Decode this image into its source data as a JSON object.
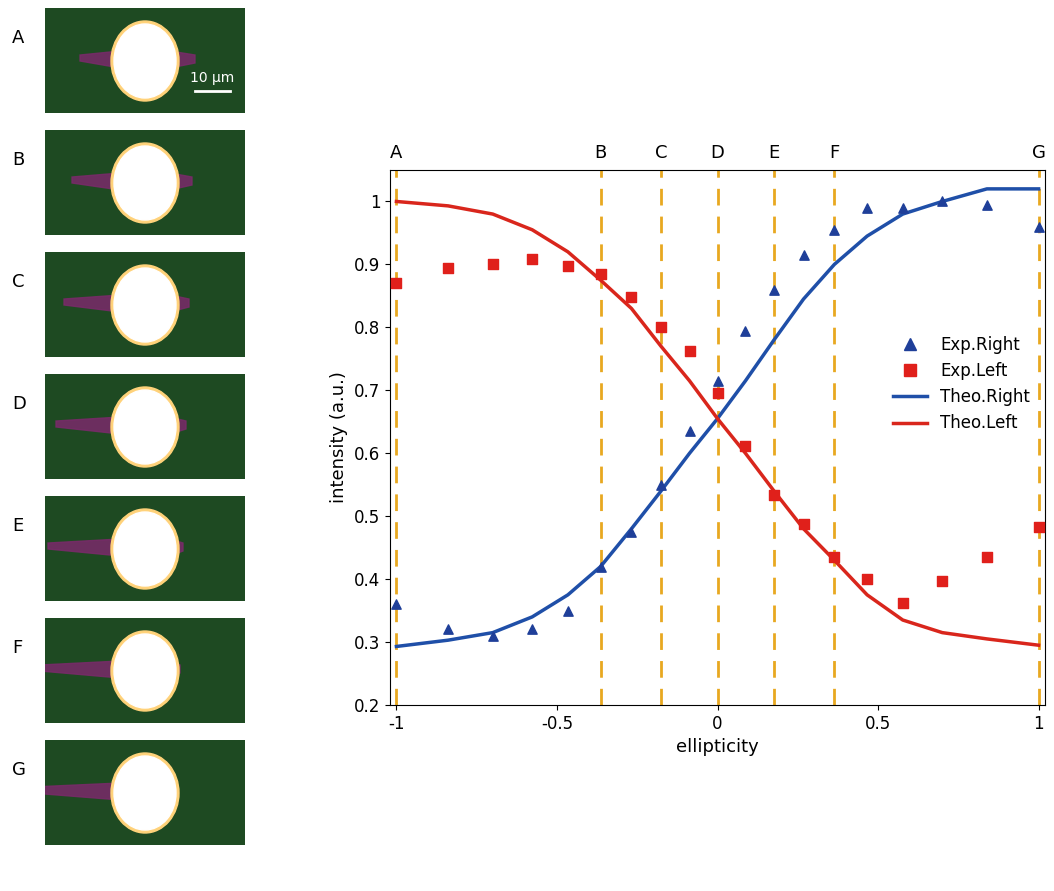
{
  "chart_data": {
    "type": "line",
    "xlabel": "ellipticity",
    "ylabel": "intensity (a.u.)",
    "xlim": [
      -1.02,
      1.02
    ],
    "ylim": [
      0.2,
      1.05
    ],
    "xticks": [
      {
        "value": -1,
        "label": "-1"
      },
      -0.5,
      0,
      0.5,
      1
    ],
    "yticks": [
      0.2,
      0.3,
      0.4,
      0.5,
      0.6,
      0.7,
      0.8,
      0.9,
      1
    ],
    "legend": "center right",
    "reference_lines": [
      {
        "x": -1,
        "label": "A"
      },
      {
        "x": -0.364,
        "label": "B"
      },
      {
        "x": -0.176,
        "label": "C"
      },
      {
        "x": 0,
        "label": "D"
      },
      {
        "x": 0.176,
        "label": "E"
      },
      {
        "x": 0.364,
        "label": "F"
      },
      {
        "x": 1,
        "label": "G"
      }
    ],
    "reference_color": "#e8a820",
    "series": [
      {
        "name": "Exp.Right",
        "type": "scatter",
        "marker": "triangle",
        "color": "#1f3f99",
        "x": [
          -1,
          -0.839,
          -0.7,
          -0.577,
          -0.466,
          -0.364,
          -0.268,
          -0.176,
          -0.087,
          0,
          0.087,
          0.176,
          0.268,
          0.364,
          0.466,
          0.577,
          0.7,
          0.839,
          1
        ],
        "values": [
          0.36,
          0.32,
          0.31,
          0.32,
          0.35,
          0.42,
          0.475,
          0.55,
          0.635,
          0.715,
          0.795,
          0.86,
          0.915,
          0.955,
          0.99,
          0.99,
          1.0,
          0.995,
          0.96
        ]
      },
      {
        "name": "Exp.Left",
        "type": "scatter",
        "marker": "square",
        "color": "#e0201b",
        "x": [
          -1,
          -0.839,
          -0.7,
          -0.577,
          -0.466,
          -0.364,
          -0.268,
          -0.176,
          -0.087,
          0,
          0.087,
          0.176,
          0.268,
          0.364,
          0.466,
          0.577,
          0.7,
          0.839,
          1
        ],
        "values": [
          0.87,
          0.895,
          0.9,
          0.908,
          0.898,
          0.885,
          0.848,
          0.8,
          0.762,
          0.695,
          0.612,
          0.533,
          0.487,
          0.435,
          0.4,
          0.362,
          0.397,
          0.435,
          0.483
        ]
      },
      {
        "name": "Theo.Right",
        "type": "line",
        "line_style": "solid",
        "color": "#1f4fa8",
        "x": [
          -1,
          -0.839,
          -0.7,
          -0.577,
          -0.466,
          -0.364,
          -0.268,
          -0.176,
          -0.087,
          0,
          0.087,
          0.176,
          0.268,
          0.364,
          0.466,
          0.577,
          0.7,
          0.839,
          1
        ],
        "values": [
          0.293,
          0.303,
          0.315,
          0.34,
          0.375,
          0.42,
          0.48,
          0.54,
          0.6,
          0.655,
          0.715,
          0.78,
          0.845,
          0.9,
          0.945,
          0.98,
          1.0,
          1.02,
          1.02
        ]
      },
      {
        "name": "Theo.Left",
        "type": "line",
        "line_style": "solid",
        "color": "#d9261c",
        "x": [
          -1,
          -0.839,
          -0.7,
          -0.577,
          -0.466,
          -0.364,
          -0.268,
          -0.176,
          -0.087,
          0,
          0.087,
          0.176,
          0.268,
          0.364,
          0.466,
          0.577,
          0.7,
          0.839,
          1
        ],
        "values": [
          1.0,
          0.993,
          0.98,
          0.955,
          0.92,
          0.875,
          0.83,
          0.77,
          0.715,
          0.655,
          0.6,
          0.54,
          0.48,
          0.43,
          0.375,
          0.335,
          0.315,
          0.305,
          0.295
        ]
      }
    ]
  },
  "panels": {
    "labels": [
      "A",
      "B",
      "C",
      "D",
      "E",
      "F",
      "G"
    ],
    "scale_bar": "10 μm"
  }
}
